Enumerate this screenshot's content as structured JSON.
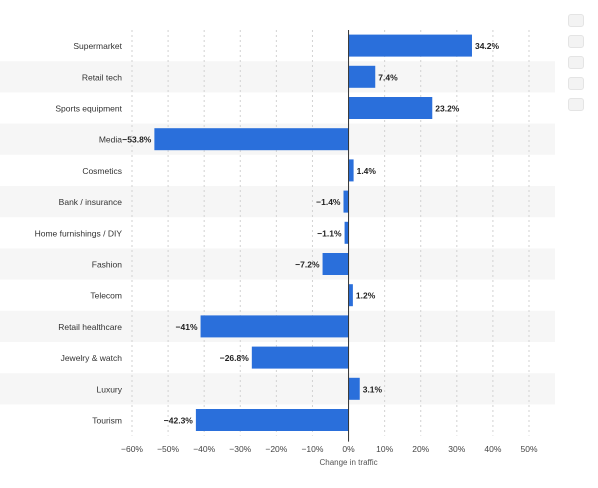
{
  "toolbar": {
    "icons": [
      "bookmark-icon",
      "bell-icon",
      "settings-icon",
      "share-icon",
      "print-icon"
    ]
  },
  "chart_data": {
    "type": "bar",
    "orientation": "horizontal",
    "categories": [
      "Supermarket",
      "Retail tech",
      "Sports equipment",
      "Media",
      "Cosmetics",
      "Bank / insurance",
      "Home furnishings / DIY",
      "Fashion",
      "Telecom",
      "Retail healthcare",
      "Jewelry & watch",
      "Luxury",
      "Tourism"
    ],
    "values": [
      34.2,
      7.4,
      23.2,
      -53.8,
      1.4,
      -1.4,
      -1.1,
      -7.2,
      1.2,
      -41,
      -26.8,
      3.1,
      -42.3
    ],
    "value_labels": [
      "34.2%",
      "7.4%",
      "23.2%",
      "−53.8%",
      "1.4%",
      "−1.4%",
      "−1.1%",
      "−7.2%",
      "1.2%",
      "−41%",
      "−26.8%",
      "3.1%",
      "−42.3%"
    ],
    "xlabel": "Change in traffic",
    "ylabel": "",
    "xlim": [
      -60,
      50
    ],
    "xticks": [
      -60,
      -50,
      -40,
      -30,
      -20,
      -10,
      0,
      10,
      20,
      30,
      40,
      50
    ],
    "xtick_labels": [
      "−60%",
      "−50%",
      "−40%",
      "−30%",
      "−20%",
      "−10%",
      "0%",
      "10%",
      "20%",
      "30%",
      "40%",
      "50%"
    ],
    "grid": true,
    "legend": "none",
    "bar_color": "#2a6fdb"
  }
}
